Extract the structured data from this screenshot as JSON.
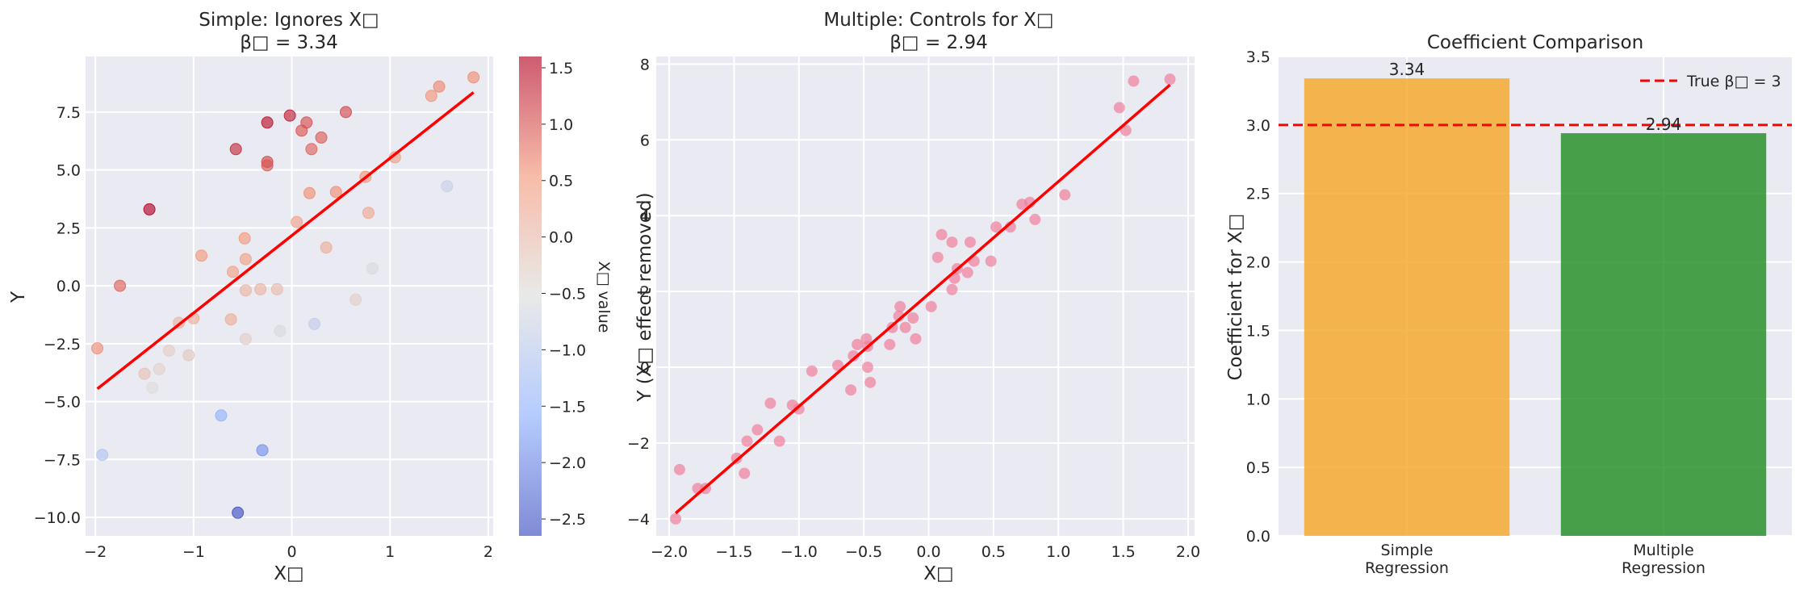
{
  "chart_data": [
    {
      "type": "scatter",
      "title_line1": "Simple: Ignores X□",
      "title_line2": "β□ = 3.34",
      "xlabel": "X□",
      "ylabel": "Y",
      "xlim": [
        -2.1,
        2.05
      ],
      "ylim": [
        -10.8,
        9.9
      ],
      "xticks": [
        -2,
        -1,
        0,
        1,
        2
      ],
      "yticks": [
        -10.0,
        -7.5,
        -5.0,
        -2.5,
        0.0,
        2.5,
        5.0,
        7.5
      ],
      "grid": true,
      "colorbar": {
        "label": "X□ value",
        "colormap": "coolwarm",
        "range": [
          -2.65,
          1.6
        ],
        "ticks": [
          -2.5,
          -2.0,
          -1.5,
          -1.0,
          -0.5,
          0.0,
          0.5,
          1.0,
          1.5
        ]
      },
      "points": [
        {
          "x": -1.98,
          "y": -2.7,
          "c": 0.6
        },
        {
          "x": -1.93,
          "y": -7.3,
          "c": -1.1
        },
        {
          "x": -1.75,
          "y": 0.0,
          "c": 0.9
        },
        {
          "x": -1.5,
          "y": -3.8,
          "c": -0.1
        },
        {
          "x": -1.45,
          "y": 3.3,
          "c": 1.6
        },
        {
          "x": -1.42,
          "y": -4.4,
          "c": -0.5
        },
        {
          "x": -1.35,
          "y": -3.6,
          "c": -0.35
        },
        {
          "x": -1.25,
          "y": -2.8,
          "c": -0.3
        },
        {
          "x": -1.15,
          "y": -1.6,
          "c": 0.1
        },
        {
          "x": -1.05,
          "y": -3.0,
          "c": -0.2
        },
        {
          "x": -1.0,
          "y": -1.4,
          "c": 0.2
        },
        {
          "x": -0.92,
          "y": 1.3,
          "c": 0.5
        },
        {
          "x": -0.72,
          "y": -5.6,
          "c": -1.5
        },
        {
          "x": -0.62,
          "y": -1.45,
          "c": 0.2
        },
        {
          "x": -0.6,
          "y": 0.6,
          "c": 0.4
        },
        {
          "x": -0.57,
          "y": 5.9,
          "c": 1.3
        },
        {
          "x": -0.55,
          "y": -9.8,
          "c": -2.6
        },
        {
          "x": -0.48,
          "y": 2.05,
          "c": 0.5
        },
        {
          "x": -0.47,
          "y": 1.15,
          "c": 0.4
        },
        {
          "x": -0.47,
          "y": -0.2,
          "c": 0.1
        },
        {
          "x": -0.47,
          "y": -2.3,
          "c": -0.3
        },
        {
          "x": -0.32,
          "y": -0.15,
          "c": 0.1
        },
        {
          "x": -0.3,
          "y": -7.1,
          "c": -1.9
        },
        {
          "x": -0.25,
          "y": 7.05,
          "c": 1.5
        },
        {
          "x": -0.25,
          "y": 5.35,
          "c": 1.1
        },
        {
          "x": -0.25,
          "y": 5.2,
          "c": 1.0
        },
        {
          "x": -0.15,
          "y": -0.15,
          "c": 0.0
        },
        {
          "x": -0.12,
          "y": -1.95,
          "c": -0.6
        },
        {
          "x": -0.02,
          "y": 7.35,
          "c": 1.4
        },
        {
          "x": 0.05,
          "y": 2.75,
          "c": 0.35
        },
        {
          "x": 0.1,
          "y": 6.7,
          "c": 1.0
        },
        {
          "x": 0.15,
          "y": 7.05,
          "c": 1.05
        },
        {
          "x": 0.18,
          "y": 4.0,
          "c": 0.6
        },
        {
          "x": 0.2,
          "y": 5.9,
          "c": 0.9
        },
        {
          "x": 0.23,
          "y": -1.65,
          "c": -0.9
        },
        {
          "x": 0.3,
          "y": 6.4,
          "c": 0.95
        },
        {
          "x": 0.35,
          "y": 1.65,
          "c": 0.2
        },
        {
          "x": 0.45,
          "y": 4.05,
          "c": 0.6
        },
        {
          "x": 0.55,
          "y": 7.5,
          "c": 1.1
        },
        {
          "x": 0.65,
          "y": -0.6,
          "c": -0.3
        },
        {
          "x": 0.75,
          "y": 4.7,
          "c": 0.5
        },
        {
          "x": 0.78,
          "y": 3.15,
          "c": 0.3
        },
        {
          "x": 0.82,
          "y": 0.75,
          "c": -0.6
        },
        {
          "x": 1.05,
          "y": 5.55,
          "c": 0.4
        },
        {
          "x": 1.42,
          "y": 8.2,
          "c": 0.55
        },
        {
          "x": 1.5,
          "y": 8.6,
          "c": 0.65
        },
        {
          "x": 1.58,
          "y": 4.3,
          "c": -0.8
        },
        {
          "x": 1.85,
          "y": 9.0,
          "c": 0.6
        }
      ],
      "fit_line": {
        "x": [
          -1.98,
          1.85
        ],
        "y": [
          -4.45,
          8.35
        ],
        "color": "#ff0000"
      }
    },
    {
      "type": "scatter",
      "title_line1": "Multiple: Controls for X□",
      "title_line2": "β□ = 2.94",
      "xlabel": "X□",
      "ylabel": "Y (X□ effect removed)",
      "xlim": [
        -2.1,
        2.05
      ],
      "ylim": [
        -4.45,
        8.2
      ],
      "xticks": [
        -2.0,
        -1.5,
        -1.0,
        -0.5,
        0.0,
        0.5,
        1.0,
        1.5,
        2.0
      ],
      "yticks": [
        -4,
        -2,
        0,
        2,
        4,
        6,
        8
      ],
      "grid": true,
      "point_color": "#f07f9b",
      "points": [
        {
          "x": -1.95,
          "y": -4.0
        },
        {
          "x": -1.92,
          "y": -2.7
        },
        {
          "x": -1.78,
          "y": -3.2
        },
        {
          "x": -1.72,
          "y": -3.2
        },
        {
          "x": -1.48,
          "y": -2.4
        },
        {
          "x": -1.42,
          "y": -2.8
        },
        {
          "x": -1.4,
          "y": -1.95
        },
        {
          "x": -1.32,
          "y": -1.65
        },
        {
          "x": -1.22,
          "y": -0.95
        },
        {
          "x": -1.15,
          "y": -1.95
        },
        {
          "x": -1.05,
          "y": -1.0
        },
        {
          "x": -1.0,
          "y": -1.1
        },
        {
          "x": -0.9,
          "y": -0.1
        },
        {
          "x": -0.7,
          "y": 0.05
        },
        {
          "x": -0.6,
          "y": -0.6
        },
        {
          "x": -0.58,
          "y": 0.3
        },
        {
          "x": -0.55,
          "y": 0.6
        },
        {
          "x": -0.48,
          "y": 0.75
        },
        {
          "x": -0.47,
          "y": 0.55
        },
        {
          "x": -0.47,
          "y": 0.0
        },
        {
          "x": -0.45,
          "y": -0.4
        },
        {
          "x": -0.3,
          "y": 0.6
        },
        {
          "x": -0.28,
          "y": 1.05
        },
        {
          "x": -0.23,
          "y": 1.35
        },
        {
          "x": -0.22,
          "y": 1.6
        },
        {
          "x": -0.18,
          "y": 1.05
        },
        {
          "x": -0.12,
          "y": 1.3
        },
        {
          "x": -0.1,
          "y": 0.75
        },
        {
          "x": 0.02,
          "y": 1.6
        },
        {
          "x": 0.07,
          "y": 2.9
        },
        {
          "x": 0.1,
          "y": 3.5
        },
        {
          "x": 0.18,
          "y": 3.3
        },
        {
          "x": 0.18,
          "y": 2.05
        },
        {
          "x": 0.2,
          "y": 2.35
        },
        {
          "x": 0.22,
          "y": 2.6
        },
        {
          "x": 0.3,
          "y": 2.5
        },
        {
          "x": 0.32,
          "y": 3.3
        },
        {
          "x": 0.35,
          "y": 2.8
        },
        {
          "x": 0.48,
          "y": 2.8
        },
        {
          "x": 0.52,
          "y": 3.7
        },
        {
          "x": 0.63,
          "y": 3.7
        },
        {
          "x": 0.72,
          "y": 4.3
        },
        {
          "x": 0.78,
          "y": 4.35
        },
        {
          "x": 0.82,
          "y": 3.9
        },
        {
          "x": 1.05,
          "y": 4.55
        },
        {
          "x": 1.47,
          "y": 6.85
        },
        {
          "x": 1.52,
          "y": 6.25
        },
        {
          "x": 1.58,
          "y": 7.55
        },
        {
          "x": 1.86,
          "y": 7.6
        }
      ],
      "fit_line": {
        "x": [
          -1.95,
          1.86
        ],
        "y": [
          -3.85,
          7.45
        ],
        "color": "#ff0000"
      }
    },
    {
      "type": "bar",
      "title": "Coefficient Comparison",
      "categories": [
        [
          "Simple",
          "Regression"
        ],
        [
          "Multiple",
          "Regression"
        ]
      ],
      "values": [
        3.34,
        2.94
      ],
      "value_labels": [
        "3.34",
        "2.94"
      ],
      "colors": [
        "#f5a623",
        "#1e8c1e"
      ],
      "ylabel": "Coefficient for X□",
      "ylim": [
        0,
        3.5
      ],
      "yticks": [
        0.0,
        0.5,
        1.0,
        1.5,
        2.0,
        2.5,
        3.0,
        3.5
      ],
      "grid": true,
      "reference_line": {
        "value": 3,
        "label": "True β□ = 3",
        "color": "#ff0000",
        "style": "dashed"
      },
      "legend_position": "top-right"
    }
  ]
}
